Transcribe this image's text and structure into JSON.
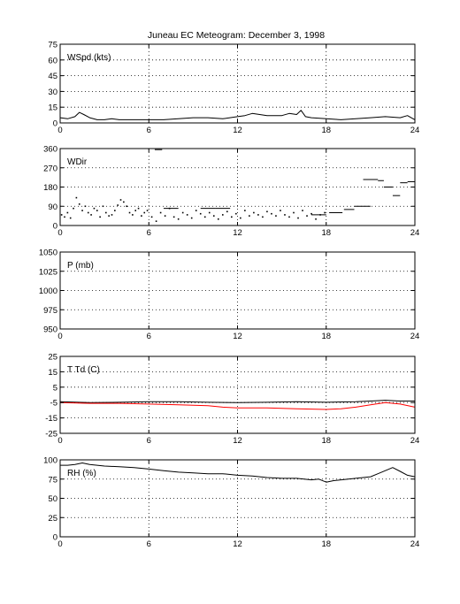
{
  "figure": {
    "title": "Juneau EC Meteogram:  December  3, 1998"
  },
  "chart_data": [
    {
      "type": "line",
      "label": "WSpd (kts)",
      "xlim": [
        0,
        24
      ],
      "ylim": [
        0,
        75
      ],
      "xticks": [
        0,
        6,
        12,
        18,
        24
      ],
      "yticks": [
        0,
        15,
        30,
        45,
        60,
        75
      ],
      "grid": true,
      "series": [
        {
          "color": "#000000",
          "x": [
            0,
            0.5,
            1,
            1.3,
            1.6,
            2,
            2.5,
            3,
            3.5,
            4,
            5,
            6,
            7,
            8,
            9,
            10,
            11,
            12,
            12.5,
            13,
            14,
            15,
            15.5,
            16,
            16.3,
            16.6,
            17,
            18,
            19,
            20,
            21,
            22,
            23,
            23.5,
            24
          ],
          "y": [
            5,
            4,
            6,
            10,
            8,
            5,
            3,
            3,
            4,
            3,
            3,
            3,
            3,
            4,
            5,
            5,
            4,
            6,
            7,
            9,
            7,
            7,
            9,
            8,
            12,
            6,
            5,
            4,
            3,
            4,
            5,
            6,
            5,
            7,
            3
          ]
        }
      ]
    },
    {
      "type": "scatter",
      "label": "WDir",
      "xlim": [
        0,
        24
      ],
      "ylim": [
        0,
        360
      ],
      "xticks": [
        0,
        6,
        12,
        18,
        24
      ],
      "yticks": [
        0,
        90,
        180,
        270,
        360
      ],
      "grid": true,
      "series": [
        {
          "color": "#000000",
          "x": [
            0.1,
            0.3,
            0.5,
            0.7,
            0.9,
            1.1,
            1.3,
            1.5,
            1.7,
            1.9,
            2.1,
            2.3,
            2.5,
            2.7,
            2.9,
            3.1,
            3.3,
            3.5,
            3.7,
            3.9,
            4.1,
            4.3,
            4.5,
            4.7,
            4.9,
            5.1,
            5.3,
            5.5,
            5.7,
            5.9,
            6.2,
            6.5,
            6.8,
            7.1,
            7.4,
            7.7,
            8.0,
            8.3,
            8.6,
            8.9,
            9.2,
            9.5,
            9.8,
            10.1,
            10.4,
            10.7,
            11.0,
            11.3,
            11.6,
            11.9,
            12.2,
            12.5,
            12.8,
            13.1,
            13.4,
            13.7,
            14.0,
            14.3,
            14.6,
            14.9,
            15.2,
            15.5,
            15.8,
            16.1,
            16.4,
            16.7,
            17.0,
            17.3,
            17.6,
            17.9
          ],
          "y": [
            50,
            40,
            60,
            35,
            80,
            130,
            100,
            70,
            90,
            60,
            50,
            80,
            70,
            40,
            90,
            60,
            45,
            50,
            70,
            95,
            120,
            110,
            90,
            60,
            50,
            70,
            80,
            45,
            60,
            70,
            40,
            20,
            60,
            45,
            80,
            40,
            30,
            60,
            50,
            35,
            70,
            55,
            40,
            60,
            45,
            30,
            50,
            65,
            40,
            55,
            35,
            70,
            45,
            60,
            50,
            40,
            65,
            55,
            45,
            70,
            50,
            40,
            60,
            35,
            70,
            45,
            55,
            30,
            50,
            60
          ]
        },
        {
          "color": "#000000",
          "mode": "segments",
          "x": [
            6.4,
            6.9,
            7.0,
            8.0,
            9.5,
            10.5,
            10.5,
            11.5,
            17.0,
            18.0,
            18.2,
            19.1,
            19.2,
            19.9,
            19.9,
            21.0,
            20.5,
            21.5,
            21.5,
            21.9,
            21.9,
            22.5,
            22.5,
            23.0,
            23.0,
            23.5,
            23.5,
            24.0
          ],
          "y": [
            355,
            355,
            80,
            80,
            80,
            80,
            80,
            80,
            50,
            50,
            60,
            60,
            75,
            75,
            90,
            90,
            215,
            215,
            210,
            210,
            180,
            180,
            140,
            140,
            200,
            200,
            205,
            205
          ]
        }
      ]
    },
    {
      "type": "line",
      "label": "P (mb)",
      "xlim": [
        0,
        24
      ],
      "ylim": [
        950,
        1050
      ],
      "xticks": [
        0,
        6,
        12,
        18,
        24
      ],
      "yticks": [
        950,
        975,
        1000,
        1025,
        1050
      ],
      "grid": true,
      "series": []
    },
    {
      "type": "line",
      "label": "T Td (C)",
      "xlim": [
        0,
        24
      ],
      "ylim": [
        -25,
        25
      ],
      "xticks": [
        0,
        6,
        12,
        18,
        24
      ],
      "yticks": [
        -25,
        -15,
        -5,
        5,
        15,
        25
      ],
      "grid": true,
      "series": [
        {
          "color": "#000000",
          "x": [
            0,
            2,
            4,
            6,
            8,
            10,
            12,
            14,
            16,
            18,
            20,
            21,
            22,
            23,
            24
          ],
          "y": [
            -4.5,
            -5,
            -4.8,
            -4.5,
            -4.5,
            -4.8,
            -5,
            -4.8,
            -4.5,
            -4.8,
            -4.5,
            -4,
            -3.5,
            -4,
            -4
          ]
        },
        {
          "color": "#ff0000",
          "x": [
            0,
            2,
            4,
            6,
            8,
            10,
            11,
            12,
            14,
            16,
            18,
            19,
            20,
            21,
            22,
            23,
            24
          ],
          "y": [
            -5,
            -5.5,
            -5.5,
            -6,
            -6.5,
            -7,
            -8,
            -8.5,
            -8.5,
            -9,
            -9.5,
            -9,
            -8,
            -6.5,
            -5,
            -6,
            -8
          ]
        }
      ]
    },
    {
      "type": "line",
      "label": "RH (%)",
      "xlim": [
        0,
        24
      ],
      "ylim": [
        0,
        100
      ],
      "xticks": [
        0,
        6,
        12,
        18,
        24
      ],
      "yticks": [
        0,
        25,
        50,
        75,
        100
      ],
      "grid": true,
      "series": [
        {
          "color": "#000000",
          "x": [
            0,
            0.5,
            1,
            1.5,
            2,
            3,
            4,
            5,
            6,
            7,
            8,
            9,
            10,
            11,
            12,
            13,
            14,
            15,
            16,
            17,
            17.5,
            18,
            18.5,
            19,
            20,
            21,
            21.5,
            22,
            22.5,
            23,
            23.5,
            24
          ],
          "y": [
            93,
            93,
            94,
            96,
            94,
            92,
            91,
            90,
            88,
            86,
            84,
            83,
            82,
            82,
            80,
            79,
            77,
            76,
            76,
            74,
            75,
            71,
            73,
            74,
            76,
            78,
            82,
            86,
            90,
            85,
            80,
            78
          ]
        }
      ]
    }
  ]
}
